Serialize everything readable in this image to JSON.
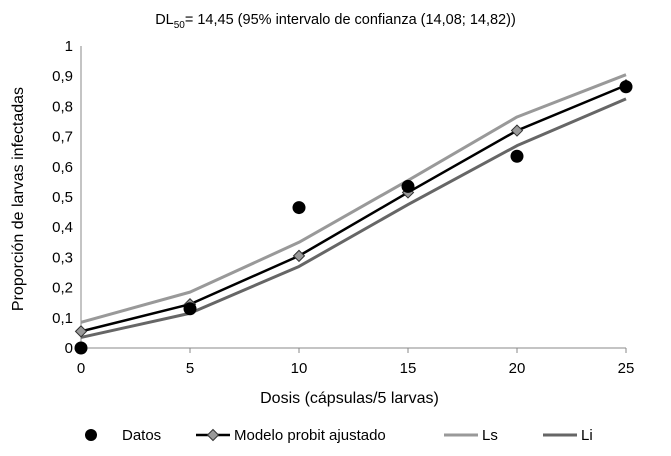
{
  "chart_data": {
    "type": "line",
    "title_prefix": "DL",
    "title_sub": "50",
    "title_rest": "= 14,45 (95% intervalo de confianza (14,08; 14,82))",
    "xlabel": "Dosis (cápsulas/5 larvas)",
    "ylabel": "Proporción de larvas infectadas",
    "xlim": [
      0,
      25
    ],
    "ylim": [
      0,
      1
    ],
    "x_ticks": [
      "0",
      "5",
      "10",
      "15",
      "20",
      "25"
    ],
    "y_ticks": [
      "0",
      "0,1",
      "0,2",
      "0,3",
      "0,4",
      "0,5",
      "0,6",
      "0,7",
      "0,8",
      "0,9",
      "1"
    ],
    "grid": false,
    "legend_position": "bottom",
    "series": [
      {
        "name": "Datos",
        "kind": "scatter",
        "color": "#000000",
        "x": [
          0,
          5,
          10,
          15,
          20,
          25
        ],
        "y": [
          0.0,
          0.13,
          0.465,
          0.535,
          0.635,
          0.865
        ]
      },
      {
        "name": "Modelo probit ajustado",
        "kind": "line-diamond",
        "color": "#000000",
        "marker_color": "#999999",
        "x": [
          0,
          5,
          10,
          15,
          20,
          25
        ],
        "y": [
          0.055,
          0.145,
          0.305,
          0.515,
          0.72,
          0.87
        ]
      },
      {
        "name": "Ls",
        "kind": "line",
        "color": "#999999",
        "x": [
          0,
          5,
          10,
          15,
          20,
          25
        ],
        "y": [
          0.085,
          0.185,
          0.35,
          0.555,
          0.765,
          0.905
        ]
      },
      {
        "name": "Li",
        "kind": "line",
        "color": "#666666",
        "x": [
          0,
          5,
          10,
          15,
          20,
          25
        ],
        "y": [
          0.035,
          0.115,
          0.27,
          0.475,
          0.67,
          0.825
        ]
      }
    ]
  }
}
